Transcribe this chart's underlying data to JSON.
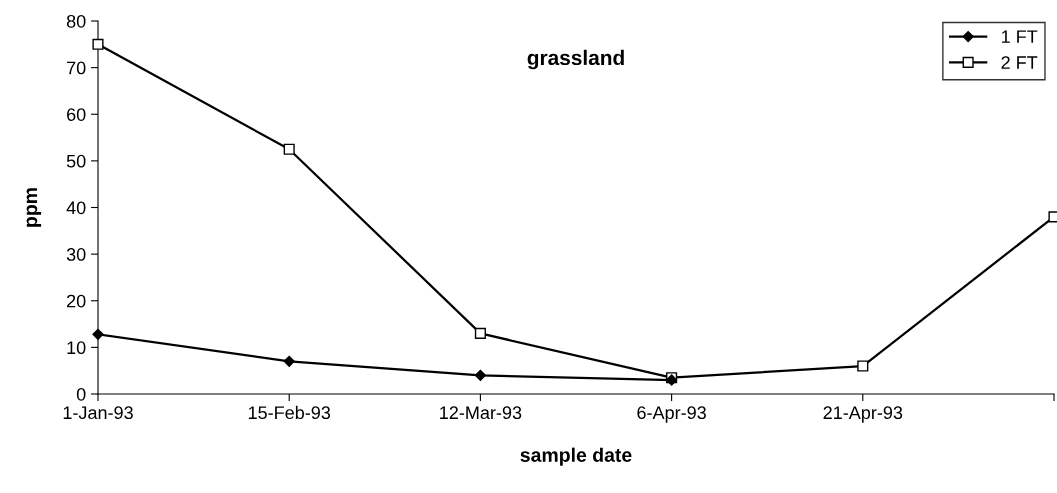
{
  "chart_data": {
    "type": "line",
    "title": "grassland",
    "xlabel": "sample date",
    "ylabel": "ppm",
    "categories": [
      "1-Jan-93",
      "15-Feb-93",
      "12-Mar-93",
      "6-Apr-93",
      "21-Apr-93",
      null
    ],
    "series": [
      {
        "name": "1 FT",
        "color": "#000000",
        "marker": "diamond",
        "values": [
          12.8,
          7,
          4,
          3,
          null,
          null
        ]
      },
      {
        "name": "2 FT",
        "color": "#000000",
        "marker": "square",
        "values": [
          75,
          52.5,
          13,
          3.5,
          6,
          38
        ]
      }
    ],
    "ylim": [
      0,
      80
    ],
    "yticks": [
      0,
      10,
      20,
      30,
      40,
      50,
      60,
      70,
      80
    ],
    "grid": false,
    "legend": "top right",
    "line_style": "solid"
  }
}
